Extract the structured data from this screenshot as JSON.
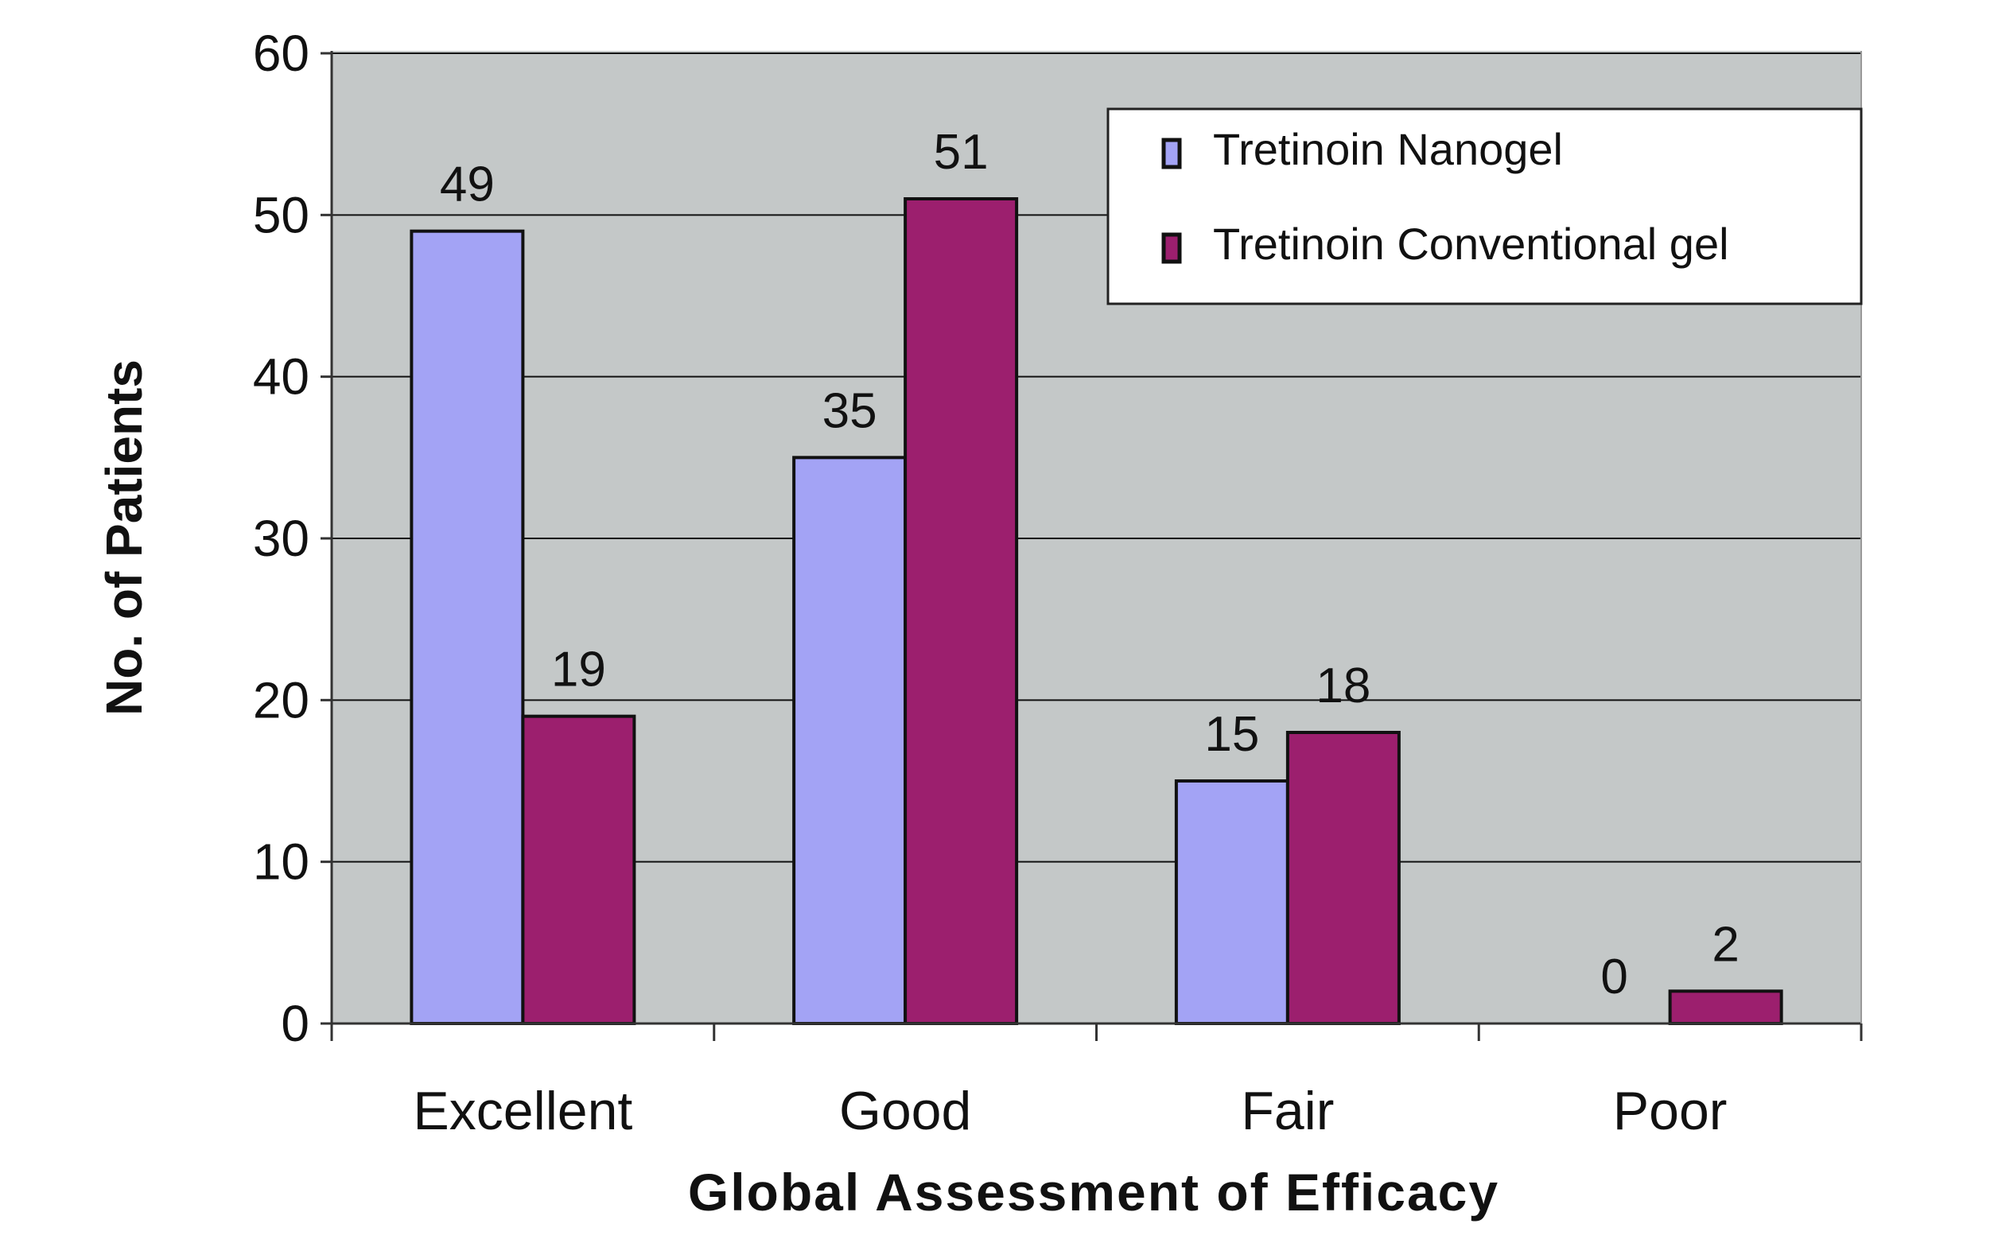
{
  "chart_data": {
    "type": "bar",
    "title": "",
    "xlabel": "Global Assessment of Efficacy",
    "ylabel": "No. of Patients",
    "categories": [
      "Excellent",
      "Good",
      "Fair",
      "Poor"
    ],
    "series": [
      {
        "name": "Tretinoin Nanogel",
        "values": [
          49,
          35,
          15,
          0
        ],
        "color": "#a3a3f5"
      },
      {
        "name": "Tretinoin Conventional gel",
        "values": [
          19,
          51,
          18,
          2
        ],
        "color": "#9c1f6e"
      }
    ],
    "data_labels": [
      [
        "49",
        "35",
        "15",
        "0"
      ],
      [
        "19",
        "51",
        "18",
        "2"
      ]
    ],
    "ylim": [
      0,
      60
    ],
    "yticks": [
      "0",
      "10",
      "20",
      "30",
      "40",
      "50",
      "60"
    ],
    "grid": true,
    "legend": "top-right",
    "plot_background": "#c4c8c8"
  }
}
